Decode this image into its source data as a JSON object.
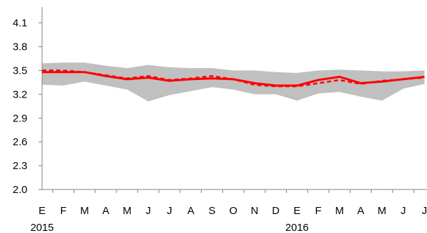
{
  "chart_data": {
    "type": "line",
    "title": "",
    "xlabel": "",
    "ylabel": "",
    "ylim": [
      2.0,
      4.3
    ],
    "yticks": [
      "2.0",
      "2.3",
      "2.6",
      "2.9",
      "3.2",
      "3.5",
      "3.8",
      "4.1"
    ],
    "ytick_values": [
      2.0,
      2.3,
      2.6,
      2.9,
      3.2,
      3.5,
      3.8,
      4.1
    ],
    "categories": [
      "E",
      "F",
      "M",
      "A",
      "M",
      "J",
      "J",
      "A",
      "S",
      "O",
      "N",
      "D",
      "E",
      "F",
      "M",
      "A",
      "M",
      "J",
      "J"
    ],
    "year_labels": [
      {
        "index": 0,
        "label": "2015"
      },
      {
        "index": 12,
        "label": "2016"
      }
    ],
    "grid": false,
    "legend": "none",
    "series": [
      {
        "kind": "band",
        "color": "#c0c0c0",
        "lower": [
          3.32,
          3.31,
          3.36,
          3.31,
          3.26,
          3.11,
          3.19,
          3.24,
          3.29,
          3.26,
          3.2,
          3.2,
          3.12,
          3.21,
          3.23,
          3.17,
          3.12,
          3.27,
          3.33
        ],
        "upper": [
          3.59,
          3.6,
          3.6,
          3.56,
          3.53,
          3.57,
          3.54,
          3.53,
          3.53,
          3.5,
          3.5,
          3.48,
          3.47,
          3.5,
          3.51,
          3.5,
          3.49,
          3.49,
          3.5
        ]
      },
      {
        "kind": "line",
        "style": "solid",
        "color": "#ff0000",
        "values": [
          3.48,
          3.48,
          3.48,
          3.43,
          3.39,
          3.41,
          3.37,
          3.39,
          3.4,
          3.39,
          3.34,
          3.31,
          3.31,
          3.38,
          3.42,
          3.34,
          3.36,
          3.39,
          3.42
        ]
      },
      {
        "kind": "line",
        "style": "dashed",
        "color": "#ff0000",
        "values": [
          3.5,
          3.5,
          3.48,
          3.44,
          3.4,
          3.43,
          3.38,
          3.4,
          3.43,
          3.39,
          3.32,
          3.3,
          3.3,
          3.34,
          3.38,
          3.33,
          3.37,
          3.39,
          3.41
        ]
      }
    ]
  }
}
